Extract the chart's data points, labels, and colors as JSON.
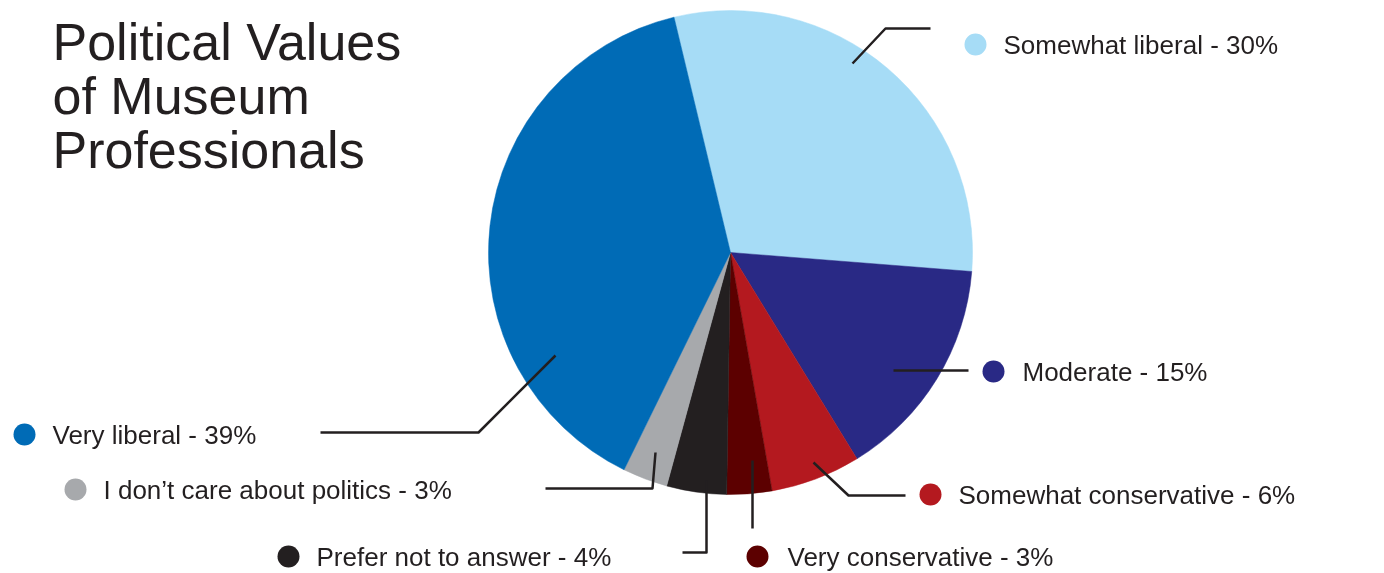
{
  "chart_data": {
    "type": "pie",
    "title": "Political Values of Museum Professionals",
    "categories": [
      "Somewhat liberal",
      "Moderate",
      "Somewhat conservative",
      "Very conservative",
      "Prefer not to answer",
      "I don’t care about politics",
      "Very liberal"
    ],
    "values": [
      30,
      15,
      6,
      3,
      4,
      3,
      39
    ],
    "value_labels": [
      "30%",
      "15%",
      "6%",
      "3%",
      "4%",
      "3%",
      "39%"
    ],
    "legend": "bottom left",
    "colors": [
      "#a6dcf6",
      "#292985",
      "#b4191f",
      "#5c0000",
      "#231f20",
      "#a7a9ac",
      "#006bb6"
    ]
  }
}
